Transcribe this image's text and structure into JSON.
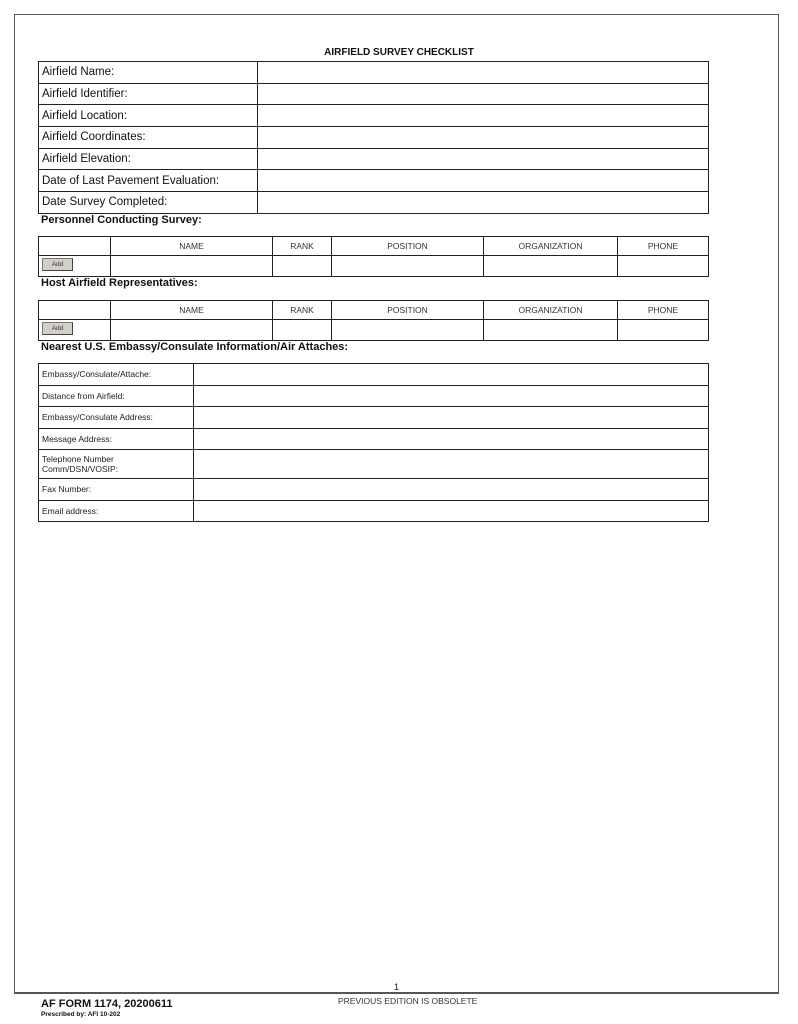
{
  "title": "AIRFIELD SURVEY CHECKLIST",
  "airfield_fields": [
    {
      "label": "Airfield Name:",
      "value": ""
    },
    {
      "label": "Airfield Identifier:",
      "value": ""
    },
    {
      "label": "Airfield Location:",
      "value": ""
    },
    {
      "label": "Airfield Coordinates:",
      "value": ""
    },
    {
      "label": "Airfield Elevation:",
      "value": ""
    },
    {
      "label": "Date of Last Pavement Evaluation:",
      "value": ""
    },
    {
      "label": "Date Survey Completed:",
      "value": ""
    }
  ],
  "personnel": {
    "heading": "Personnel Conducting Survey:",
    "columns": [
      "",
      "NAME",
      "RANK",
      "POSITION",
      "ORGANIZATION",
      "PHONE"
    ],
    "add_label": "Add"
  },
  "host": {
    "heading": "Host Airfield Representatives:",
    "columns": [
      "",
      "NAME",
      "RANK",
      "POSITION",
      "ORGANIZATION",
      "PHONE"
    ],
    "add_label": "Add"
  },
  "embassy": {
    "heading": "Nearest U.S. Embassy/Consulate Information/Air Attaches:",
    "fields": [
      {
        "label": "Embassy/Consulate/Attache:",
        "value": ""
      },
      {
        "label": "Distance from Airfield:",
        "value": ""
      },
      {
        "label": "Embassy/Consulate Address:",
        "value": ""
      },
      {
        "label": "Message Address:",
        "value": ""
      },
      {
        "label": "Telephone Number Comm/DSN/VOSIP:",
        "value": ""
      },
      {
        "label": "Fax Number:",
        "value": ""
      },
      {
        "label": "Email address:",
        "value": ""
      }
    ]
  },
  "footer": {
    "page_number": "1",
    "form_id": "AF FORM 1174, 20200611",
    "prescribed": "Prescribed by: AFI 10-202",
    "edition_note": "PREVIOUS EDITION IS OBSOLETE"
  }
}
